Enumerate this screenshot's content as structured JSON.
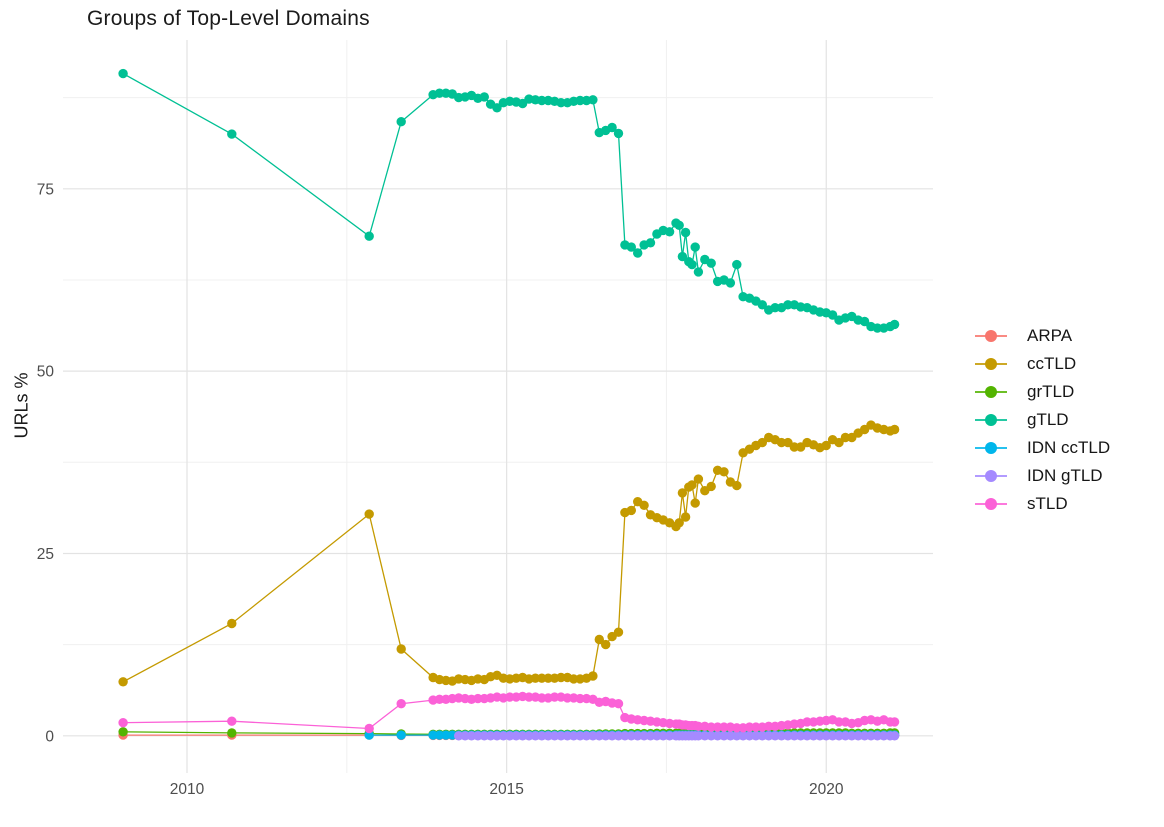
{
  "chart_data": {
    "type": "line",
    "markers": true,
    "title": "Groups of Top-Level Domains",
    "xlabel": "",
    "ylabel": "URLs %",
    "legend_position": "right",
    "grid": true,
    "x_domain": [
      2008.06,
      2021.67
    ],
    "y_domain": [
      -5.1,
      95.4
    ],
    "x_ticks": [
      2010,
      2015,
      2020
    ],
    "x_minor": [
      2012.5,
      2017.5
    ],
    "y_ticks": [
      0,
      25,
      50,
      75
    ],
    "y_minor": [
      12.5,
      37.5,
      62.5,
      87.5
    ],
    "colors": {
      "grid_major": "#e3e3e3",
      "grid_minor": "#f0f0f0",
      "tick_label": "#4d4d4d",
      "title_text": "#1b1b1b"
    },
    "x_dense": [
      2013.85,
      2013.95,
      2014.05,
      2014.15,
      2014.25,
      2014.35,
      2014.45,
      2014.55,
      2014.65,
      2014.75,
      2014.85,
      2014.95,
      2015.05,
      2015.15,
      2015.25,
      2015.35,
      2015.45,
      2015.55,
      2015.65,
      2015.75,
      2015.85,
      2015.95,
      2016.05,
      2016.15,
      2016.25,
      2016.35,
      2016.45,
      2016.55,
      2016.65,
      2016.75,
      2016.85,
      2016.95,
      2017.05,
      2017.15,
      2017.25,
      2017.35,
      2017.45,
      2017.55,
      2017.65,
      2017.7,
      2017.75,
      2017.8,
      2017.85,
      2017.9,
      2017.95,
      2018.0,
      2018.1,
      2018.2,
      2018.3,
      2018.4,
      2018.5,
      2018.6,
      2018.7,
      2018.8,
      2018.9,
      2019.0,
      2019.1,
      2019.2,
      2019.3,
      2019.4,
      2019.5,
      2019.6,
      2019.7,
      2019.8,
      2019.9,
      2020.0,
      2020.1,
      2020.2,
      2020.3,
      2020.4,
      2020.5,
      2020.6,
      2020.7,
      2020.8,
      2020.9,
      2021.0,
      2021.07
    ],
    "series": [
      {
        "name": "ARPA",
        "color": "#F8766D",
        "prefix": [
          [
            2009.0,
            0.1
          ],
          [
            2010.7,
            0.1
          ],
          [
            2012.85,
            0.1
          ],
          [
            2013.35,
            0.05
          ]
        ],
        "values_const": 0.05
      },
      {
        "name": "ccTLD",
        "color": "#C49A00",
        "prefix": [
          [
            2009.0,
            7.4
          ],
          [
            2010.7,
            15.4
          ],
          [
            2012.85,
            30.4
          ],
          [
            2013.35,
            11.9
          ]
        ],
        "values": [
          8.0,
          7.7,
          7.6,
          7.5,
          7.8,
          7.7,
          7.6,
          7.8,
          7.7,
          8.1,
          8.3,
          7.9,
          7.8,
          7.9,
          8.0,
          7.8,
          7.9,
          7.9,
          7.9,
          7.9,
          8.0,
          8.0,
          7.8,
          7.8,
          7.9,
          8.2,
          13.2,
          12.5,
          13.6,
          14.2,
          30.6,
          30.9,
          32.1,
          31.6,
          30.3,
          29.9,
          29.6,
          29.2,
          28.7,
          29.2,
          33.3,
          30.0,
          34.1,
          34.4,
          31.9,
          35.2,
          33.6,
          34.2,
          36.4,
          36.2,
          34.8,
          34.3,
          38.8,
          39.3,
          39.8,
          40.2,
          40.9,
          40.6,
          40.2,
          40.2,
          39.6,
          39.6,
          40.2,
          39.9,
          39.5,
          39.8,
          40.6,
          40.2,
          40.9,
          40.9,
          41.5,
          42.0,
          42.6,
          42.2,
          42.0,
          41.8,
          42.0
        ]
      },
      {
        "name": "grTLD",
        "color": "#53B400",
        "prefix": [
          [
            2009.0,
            0.55
          ],
          [
            2010.7,
            0.4
          ],
          [
            2012.85,
            0.3
          ],
          [
            2013.35,
            0.25
          ]
        ],
        "values": [
          0.2,
          0.2,
          0.2,
          0.2,
          0.2,
          0.2,
          0.2,
          0.2,
          0.2,
          0.2,
          0.2,
          0.2,
          0.2,
          0.2,
          0.2,
          0.2,
          0.2,
          0.2,
          0.2,
          0.2,
          0.2,
          0.2,
          0.2,
          0.2,
          0.2,
          0.2,
          0.25,
          0.25,
          0.25,
          0.25,
          0.3,
          0.3,
          0.3,
          0.3,
          0.3,
          0.35,
          0.35,
          0.35,
          0.35,
          0.35,
          0.35,
          0.35,
          0.4,
          0.4,
          0.4,
          0.4,
          0.4,
          0.4,
          0.4,
          0.4,
          0.45,
          0.45,
          0.45,
          0.45,
          0.45,
          0.4,
          0.4,
          0.4,
          0.4,
          0.4,
          0.4,
          0.4,
          0.4,
          0.4,
          0.4,
          0.4,
          0.4,
          0.4,
          0.4,
          0.35,
          0.35,
          0.35,
          0.35,
          0.35,
          0.35,
          0.4,
          0.4
        ]
      },
      {
        "name": "gTLD",
        "color": "#00C094",
        "prefix": [
          [
            2009.0,
            90.8
          ],
          [
            2010.7,
            82.5
          ],
          [
            2012.85,
            68.5
          ],
          [
            2013.35,
            84.2
          ]
        ],
        "values": [
          87.9,
          88.1,
          88.1,
          88.0,
          87.5,
          87.6,
          87.8,
          87.4,
          87.6,
          86.6,
          86.1,
          86.8,
          87.0,
          86.9,
          86.7,
          87.3,
          87.2,
          87.1,
          87.1,
          87.0,
          86.8,
          86.8,
          87.0,
          87.1,
          87.1,
          87.2,
          82.7,
          83.0,
          83.4,
          82.6,
          67.3,
          67.0,
          66.2,
          67.3,
          67.6,
          68.8,
          69.3,
          69.1,
          70.3,
          70.0,
          65.7,
          69.0,
          65.0,
          64.6,
          67.0,
          63.6,
          65.3,
          64.8,
          62.3,
          62.5,
          62.1,
          64.6,
          60.2,
          60.0,
          59.6,
          59.1,
          58.4,
          58.7,
          58.7,
          59.1,
          59.1,
          58.8,
          58.7,
          58.4,
          58.1,
          58.0,
          57.7,
          57.0,
          57.3,
          57.5,
          57.0,
          56.8,
          56.1,
          55.9,
          55.9,
          56.1,
          56.4
        ]
      },
      {
        "name": "IDN ccTLD",
        "color": "#00B6EB",
        "prefix": [
          [
            2012.85,
            0.1
          ],
          [
            2013.35,
            0.1
          ]
        ],
        "values_const": 0.1
      },
      {
        "name": "IDN gTLD",
        "color": "#A58AFF",
        "prefix": [],
        "values_const": 0.0,
        "from_x": 2014.25
      },
      {
        "name": "sTLD",
        "color": "#FB61D7",
        "prefix": [
          [
            2009.0,
            1.8
          ],
          [
            2010.7,
            2.0
          ],
          [
            2012.85,
            1.0
          ],
          [
            2013.35,
            4.4
          ]
        ],
        "values": [
          4.9,
          5.0,
          5.0,
          5.1,
          5.2,
          5.1,
          5.0,
          5.1,
          5.1,
          5.2,
          5.3,
          5.2,
          5.3,
          5.3,
          5.4,
          5.3,
          5.3,
          5.2,
          5.2,
          5.3,
          5.3,
          5.2,
          5.2,
          5.1,
          5.1,
          5.0,
          4.6,
          4.7,
          4.5,
          4.4,
          2.5,
          2.3,
          2.2,
          2.1,
          2.0,
          1.9,
          1.8,
          1.7,
          1.6,
          1.6,
          1.5,
          1.5,
          1.4,
          1.4,
          1.4,
          1.3,
          1.3,
          1.2,
          1.2,
          1.2,
          1.2,
          1.1,
          1.1,
          1.2,
          1.2,
          1.2,
          1.3,
          1.3,
          1.4,
          1.5,
          1.6,
          1.7,
          1.9,
          1.9,
          2.0,
          2.1,
          2.2,
          1.9,
          1.9,
          1.7,
          1.8,
          2.1,
          2.2,
          2.0,
          2.2,
          1.9,
          1.9
        ]
      }
    ]
  }
}
